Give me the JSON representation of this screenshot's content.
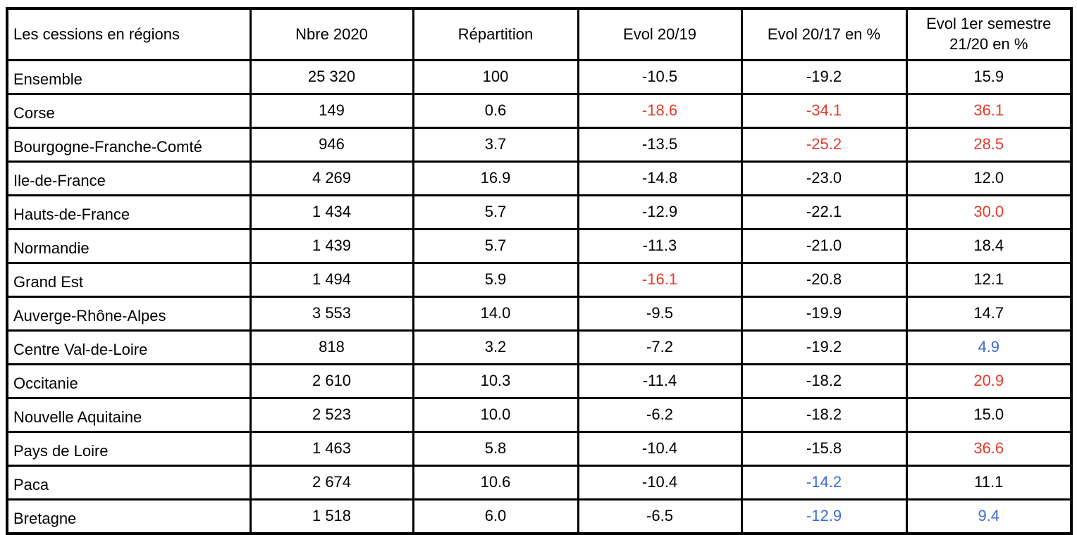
{
  "colors": {
    "black": "#000000",
    "red": "#e5392c",
    "blue": "#3d6cd7",
    "border": "#000000",
    "background": "#ffffff"
  },
  "table": {
    "title": "Les cessions en régions",
    "headers": [
      "Les cessions en régions",
      "Nbre 2020",
      "Répartition",
      "Evol 20/19",
      "Evol 20/17 en %",
      "Evol 1er semestre 21/20 en %"
    ],
    "rows": [
      {
        "cells": [
          "Ensemble",
          "25 320",
          "100",
          "-10.5",
          "-19.2",
          "15.9"
        ],
        "cellColors": [
          "black",
          "black",
          "black",
          "black",
          "black",
          "black"
        ]
      },
      {
        "cells": [
          "Corse",
          "149",
          "0.6",
          "-18.6",
          "-34.1",
          "36.1"
        ],
        "cellColors": [
          "black",
          "black",
          "black",
          "red",
          "red",
          "red"
        ]
      },
      {
        "cells": [
          "Bourgogne-Franche-Comté",
          "946",
          "3.7",
          "-13.5",
          "-25.2",
          "28.5"
        ],
        "cellColors": [
          "black",
          "black",
          "black",
          "black",
          "red",
          "red"
        ]
      },
      {
        "cells": [
          "Ile-de-France",
          "4 269",
          "16.9",
          "-14.8",
          "-23.0",
          "12.0"
        ],
        "cellColors": [
          "black",
          "black",
          "black",
          "black",
          "black",
          "black"
        ]
      },
      {
        "cells": [
          "Hauts-de-France",
          "1 434",
          "5.7",
          "-12.9",
          "-22.1",
          "30.0"
        ],
        "cellColors": [
          "black",
          "black",
          "black",
          "black",
          "black",
          "red"
        ]
      },
      {
        "cells": [
          "Normandie",
          "1 439",
          "5.7",
          "-11.3",
          "-21.0",
          "18.4"
        ],
        "cellColors": [
          "black",
          "black",
          "black",
          "black",
          "black",
          "black"
        ]
      },
      {
        "cells": [
          "Grand Est",
          "1 494",
          "5.9",
          "-16.1",
          "-20.8",
          "12.1"
        ],
        "cellColors": [
          "black",
          "black",
          "black",
          "red",
          "black",
          "black"
        ]
      },
      {
        "cells": [
          "Auverge-Rhône-Alpes",
          "3 553",
          "14.0",
          "-9.5",
          "-19.9",
          "14.7"
        ],
        "cellColors": [
          "black",
          "black",
          "black",
          "black",
          "black",
          "black"
        ]
      },
      {
        "cells": [
          "Centre Val-de-Loire",
          "818",
          "3.2",
          "-7.2",
          "-19.2",
          "4.9"
        ],
        "cellColors": [
          "black",
          "black",
          "black",
          "black",
          "black",
          "blue"
        ]
      },
      {
        "cells": [
          "Occitanie",
          "2 610",
          "10.3",
          "-11.4",
          "-18.2",
          "20.9"
        ],
        "cellColors": [
          "black",
          "black",
          "black",
          "black",
          "black",
          "red"
        ]
      },
      {
        "cells": [
          "Nouvelle Aquitaine",
          "2 523",
          "10.0",
          "-6.2",
          "-18.2",
          "15.0"
        ],
        "cellColors": [
          "black",
          "black",
          "black",
          "black",
          "black",
          "black"
        ]
      },
      {
        "cells": [
          "Pays de Loire",
          "1 463",
          "5.8",
          "-10.4",
          "-15.8",
          "36.6"
        ],
        "cellColors": [
          "black",
          "black",
          "black",
          "black",
          "black",
          "red"
        ]
      },
      {
        "cells": [
          "Paca",
          "2 674",
          "10.6",
          "-10.4",
          "-14.2",
          "11.1"
        ],
        "cellColors": [
          "black",
          "black",
          "black",
          "black",
          "blue",
          "black"
        ]
      },
      {
        "cells": [
          "Bretagne",
          "1 518",
          "6.0",
          "-6.5",
          "-12.9",
          "9.4"
        ],
        "cellColors": [
          "black",
          "black",
          "black",
          "black",
          "blue",
          "blue"
        ]
      }
    ]
  },
  "chart_data": {
    "type": "table",
    "title": "Les cessions en régions",
    "columns": [
      "Les cessions en régions",
      "Nbre 2020",
      "Répartition",
      "Evol 20/19",
      "Evol 20/17 en %",
      "Evol 1er semestre 21/20 en %"
    ],
    "categories": [
      "Ensemble",
      "Corse",
      "Bourgogne-Franche-Comté",
      "Ile-de-France",
      "Hauts-de-France",
      "Normandie",
      "Grand Est",
      "Auverge-Rhône-Alpes",
      "Centre Val-de-Loire",
      "Occitanie",
      "Nouvelle Aquitaine",
      "Pays de Loire",
      "Paca",
      "Bretagne"
    ],
    "series": [
      {
        "name": "Nbre 2020",
        "values": [
          25320,
          149,
          946,
          4269,
          1434,
          1439,
          1494,
          3553,
          818,
          2610,
          2523,
          1463,
          2674,
          1518
        ]
      },
      {
        "name": "Répartition",
        "values": [
          100,
          0.6,
          3.7,
          16.9,
          5.7,
          5.7,
          5.9,
          14.0,
          3.2,
          10.3,
          10.0,
          5.8,
          10.6,
          6.0
        ]
      },
      {
        "name": "Evol 20/19",
        "values": [
          -10.5,
          -18.6,
          -13.5,
          -14.8,
          -12.9,
          -11.3,
          -16.1,
          -9.5,
          -7.2,
          -11.4,
          -6.2,
          -10.4,
          -10.4,
          -6.5
        ]
      },
      {
        "name": "Evol 20/17 en %",
        "values": [
          -19.2,
          -34.1,
          -25.2,
          -23.0,
          -22.1,
          -21.0,
          -20.8,
          -19.9,
          -19.2,
          -18.2,
          -18.2,
          -15.8,
          -14.2,
          -12.9
        ]
      },
      {
        "name": "Evol 1er semestre 21/20 en %",
        "values": [
          15.9,
          36.1,
          28.5,
          12.0,
          30.0,
          18.4,
          12.1,
          14.7,
          4.9,
          20.9,
          15.0,
          36.6,
          11.1,
          9.4
        ]
      }
    ]
  }
}
